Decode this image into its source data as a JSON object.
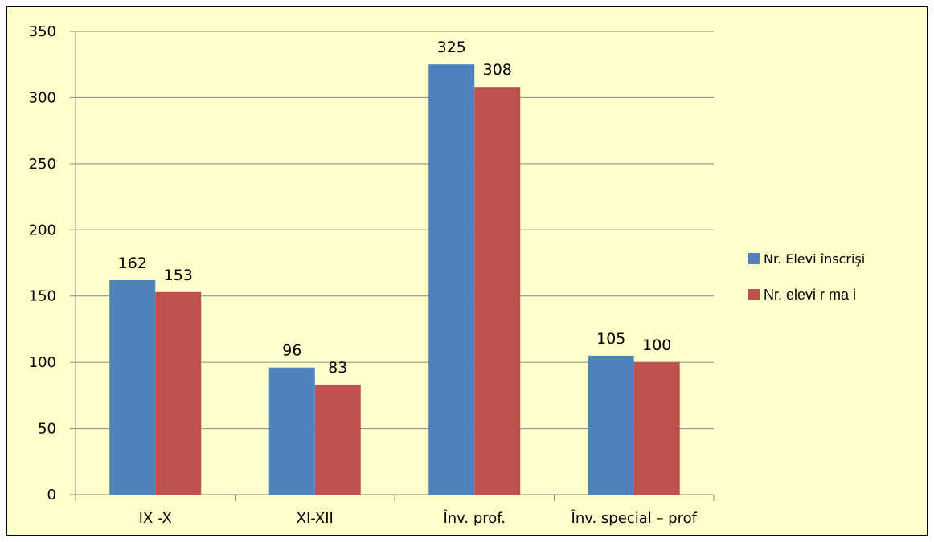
{
  "chart_data": {
    "type": "bar",
    "categories": [
      "IX -X",
      "XI-XII",
      "Înv. prof.",
      "Înv. special – prof"
    ],
    "series": [
      {
        "name": "Nr. Elevi înscrişi",
        "values": [
          162,
          96,
          325,
          105
        ],
        "color": "#4f81bd"
      },
      {
        "name": "Nr. elevi r  ma  i",
        "values": [
          153,
          83,
          308,
          100
        ],
        "color": "#c0504d"
      }
    ],
    "yticks": [
      "0",
      "50",
      "100",
      "150",
      "200",
      "250",
      "300",
      "350"
    ],
    "ylim": [
      0,
      350
    ],
    "grid": true,
    "legend_position": "right",
    "data_labels": true,
    "title": "",
    "xlabel": "",
    "ylabel": "",
    "colors": {
      "background": "#ffffcc",
      "border": "#000000",
      "gridline": "#868686"
    }
  }
}
